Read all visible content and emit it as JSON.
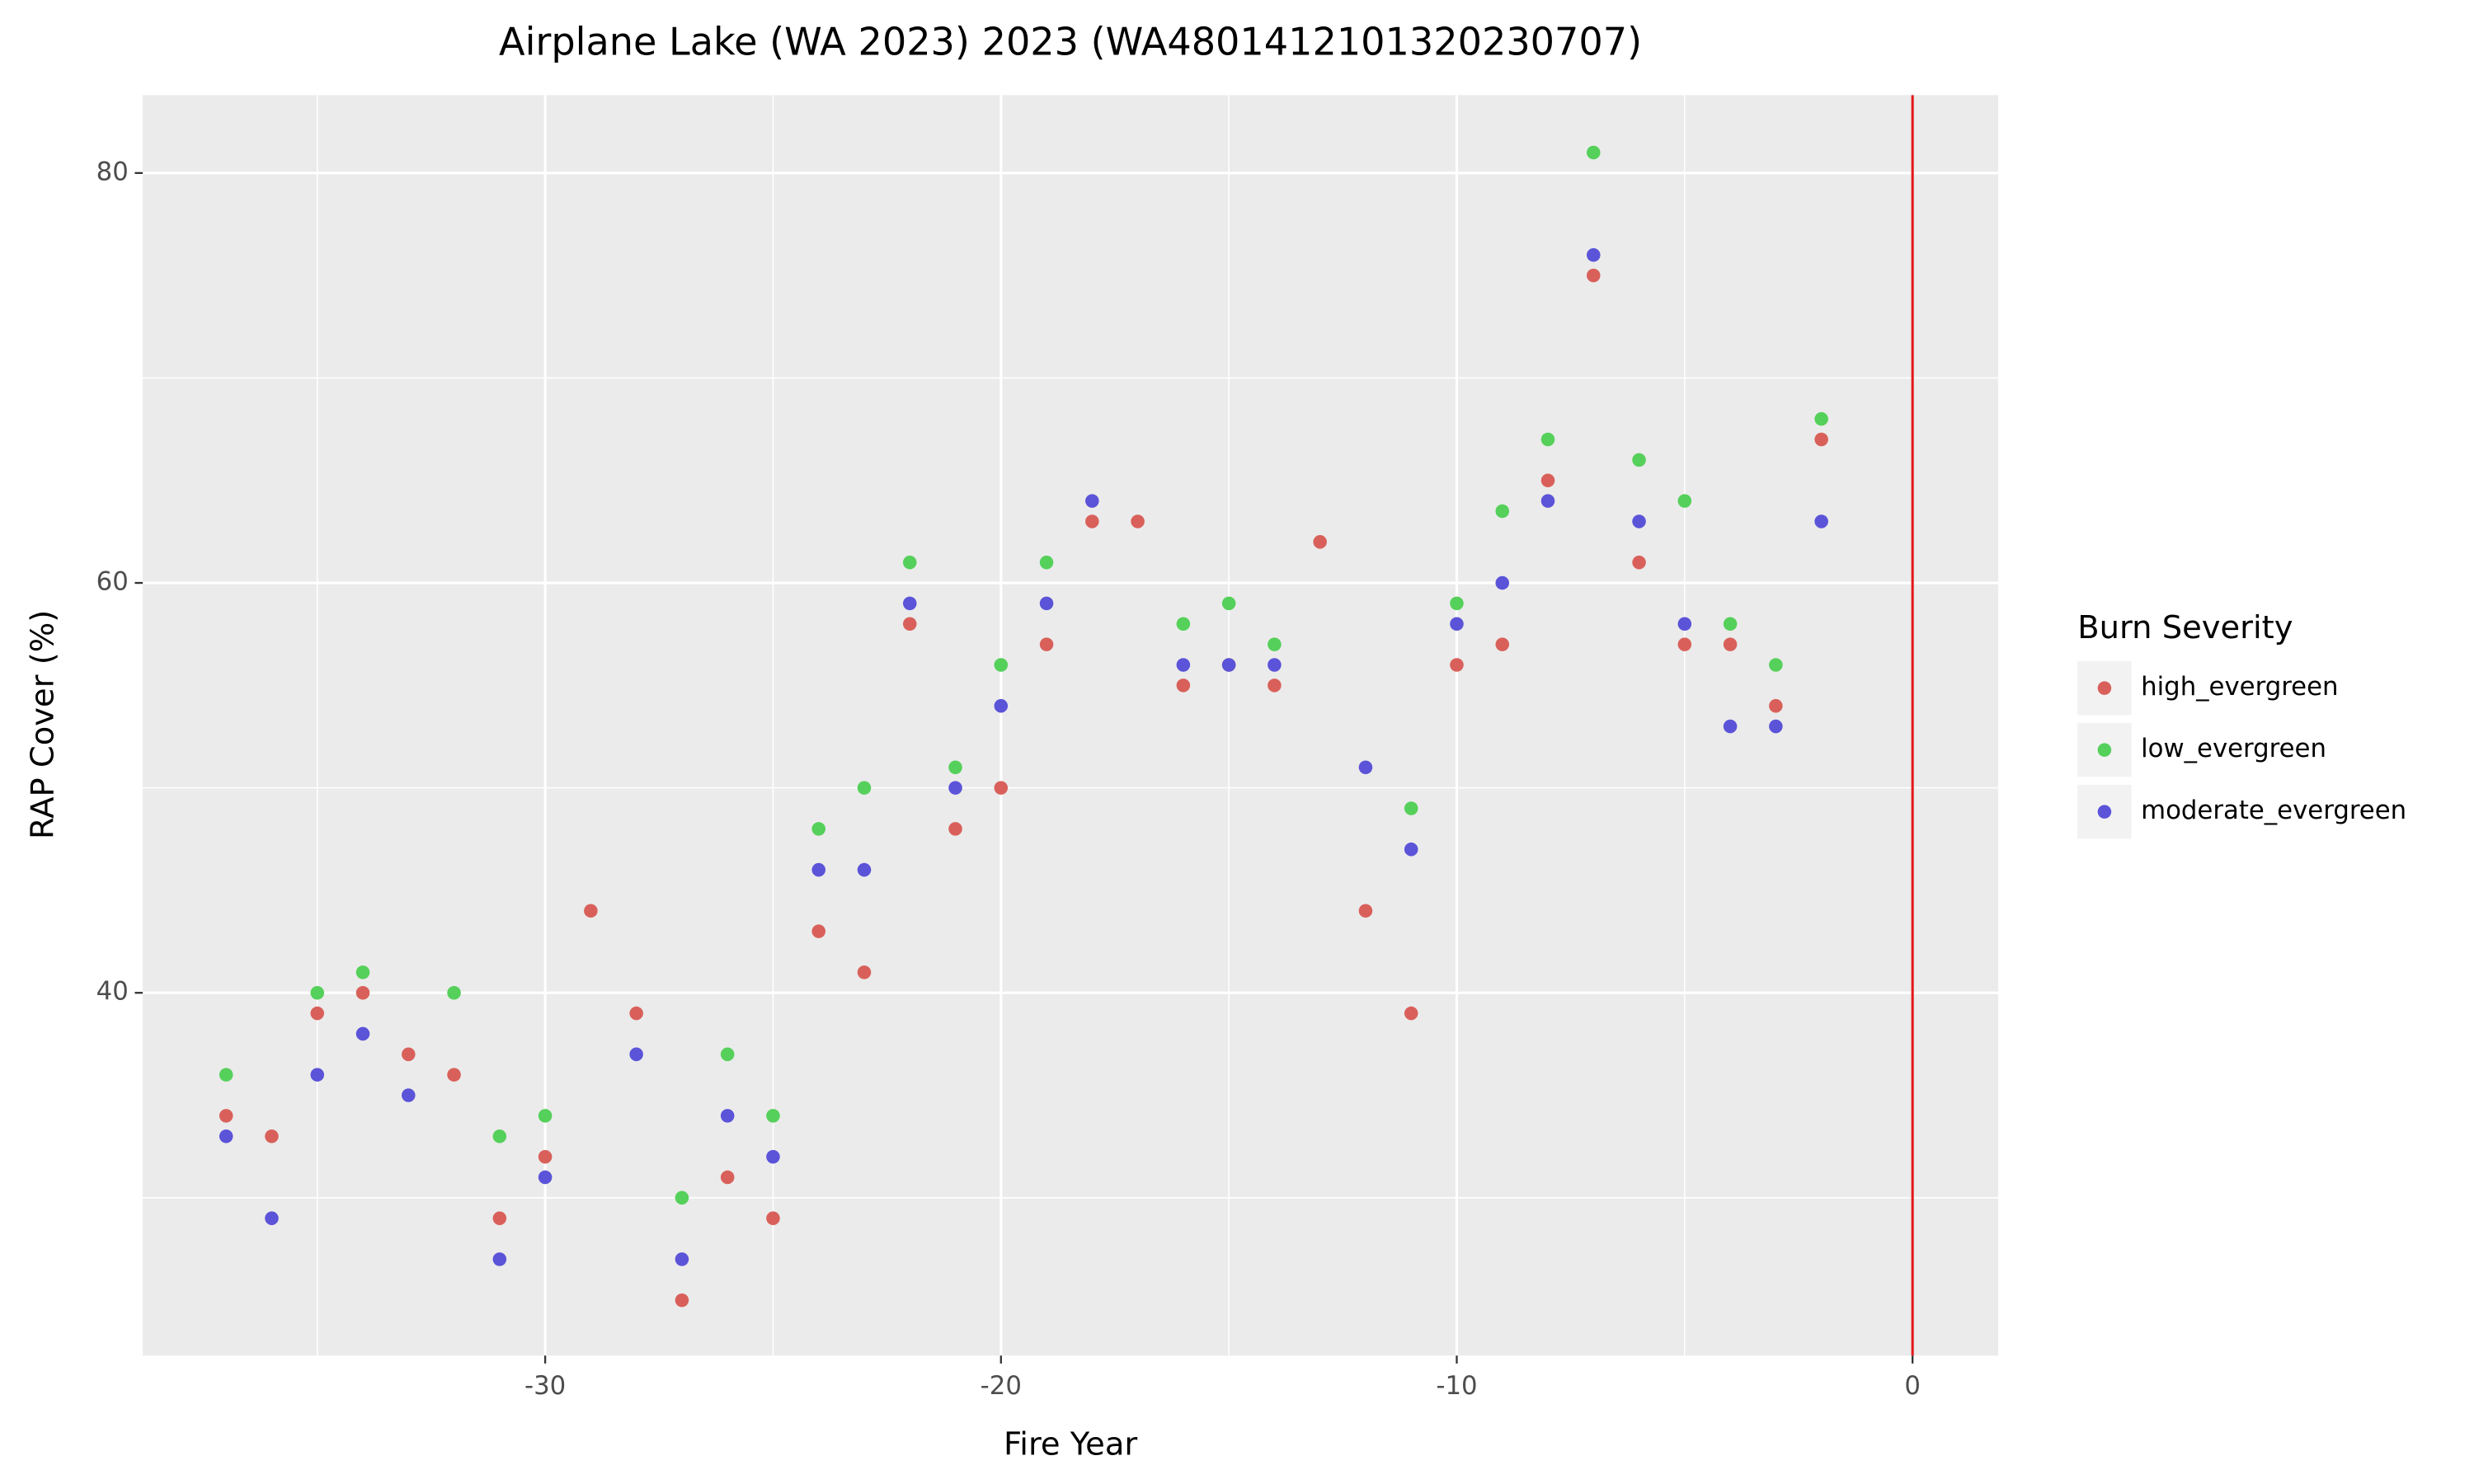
{
  "chart_data": {
    "type": "scatter",
    "title": "Airplane Lake (WA 2023) 2023 (WA4801412101320230707)",
    "x_label": "Fire Year",
    "y_label": "RAP Cover (%)",
    "legend_title": "Burn Severity",
    "legend_position": "right",
    "xlim": [
      -38.83,
      1.88
    ],
    "ylim": [
      22.3,
      83.8
    ],
    "xticks": [
      -30,
      -20,
      -10,
      0
    ],
    "yticks": [
      40,
      60,
      80
    ],
    "grid": true,
    "vline": {
      "x": 0,
      "color": "#e31a1c"
    },
    "series": [
      {
        "name": "high_evergreen",
        "color": "#d9605a",
        "x": [
          -37,
          -36,
          -35,
          -34,
          -33,
          -32,
          -31,
          -30,
          -29,
          -28,
          -27,
          -26,
          -25,
          -24,
          -23,
          -22,
          -21,
          -20,
          -19,
          -18,
          -17,
          -16,
          -15,
          -14,
          -13,
          -12,
          -11,
          -10,
          -9,
          -8,
          -7,
          -6,
          -5,
          -4,
          -3,
          -2
        ],
        "values": [
          34,
          33,
          39,
          40,
          37,
          36,
          29,
          32,
          44,
          39,
          25,
          31,
          29,
          43,
          41,
          58,
          48,
          50,
          57,
          63,
          63,
          55,
          56,
          55,
          62,
          44,
          39,
          56,
          57,
          65,
          75,
          61,
          57,
          57,
          54,
          67
        ]
      },
      {
        "name": "low_evergreen",
        "color": "#55d05a",
        "x": [
          -37,
          -35,
          -34,
          -32,
          -31,
          -30,
          -27,
          -26,
          -25,
          -24,
          -23,
          -22,
          -21,
          -20,
          -19,
          -16,
          -15,
          -14,
          -11,
          -10,
          -9,
          -8,
          -7,
          -6,
          -5,
          -4,
          -3,
          -2
        ],
        "values": [
          36,
          40,
          41,
          40,
          33,
          34,
          30,
          37,
          34,
          48,
          50,
          61,
          51,
          56,
          61,
          58,
          59,
          57,
          49,
          59,
          63.5,
          67,
          81,
          66,
          64,
          58,
          56,
          68
        ]
      },
      {
        "name": "moderate_evergreen",
        "color": "#5b53d8",
        "x": [
          -37,
          -36,
          -35,
          -34,
          -33,
          -31,
          -30,
          -28,
          -27,
          -26,
          -25,
          -24,
          -23,
          -22,
          -21,
          -20,
          -19,
          -18,
          -16,
          -15,
          -14,
          -12,
          -11,
          -10,
          -9,
          -8,
          -7,
          -6,
          -5,
          -4,
          -3,
          -2
        ],
        "values": [
          33,
          29,
          36,
          38,
          35,
          27,
          31,
          37,
          27,
          34,
          32,
          46,
          46,
          59,
          50,
          54,
          59,
          64,
          56,
          56,
          56,
          51,
          47,
          58,
          60,
          64,
          76,
          63,
          58,
          53,
          53,
          63
        ]
      }
    ]
  }
}
